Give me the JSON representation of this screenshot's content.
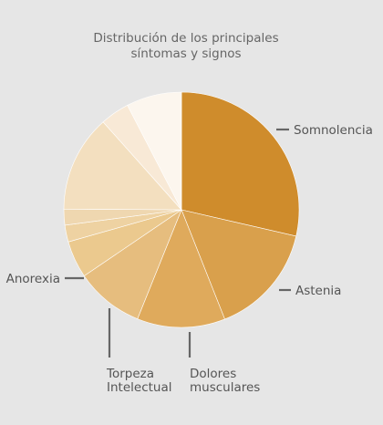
{
  "chart_data": {
    "type": "pie",
    "title_lines": [
      "Distribución de los principales",
      "síntomas y signos"
    ],
    "start_angle_deg": 0,
    "direction": "clockwise",
    "slices": [
      {
        "label": "Somnolencia",
        "value": 28.6,
        "color": "#cf8c2c"
      },
      {
        "label": "Astenia",
        "value": 15.4,
        "color": "#d9a04c"
      },
      {
        "label": "Dolores musculares",
        "value": 12.1,
        "color": "#dfaa5c"
      },
      {
        "label": "Torpeza Intelectual",
        "value": 9.4,
        "color": "#e6bd7e"
      },
      {
        "label": "Anorexia",
        "value": 5.1,
        "color": "#ebc98e"
      },
      {
        "label": "",
        "value": 2.3,
        "color": "#eed2a2"
      },
      {
        "label": "",
        "value": 2.2,
        "color": "#efd7b0"
      },
      {
        "label": "",
        "value": 13.3,
        "color": "#f3dfbf"
      },
      {
        "label": "",
        "value": 4.0,
        "color": "#f8e9d6"
      },
      {
        "label": "",
        "value": 7.6,
        "color": "#fcf6ee"
      }
    ]
  }
}
